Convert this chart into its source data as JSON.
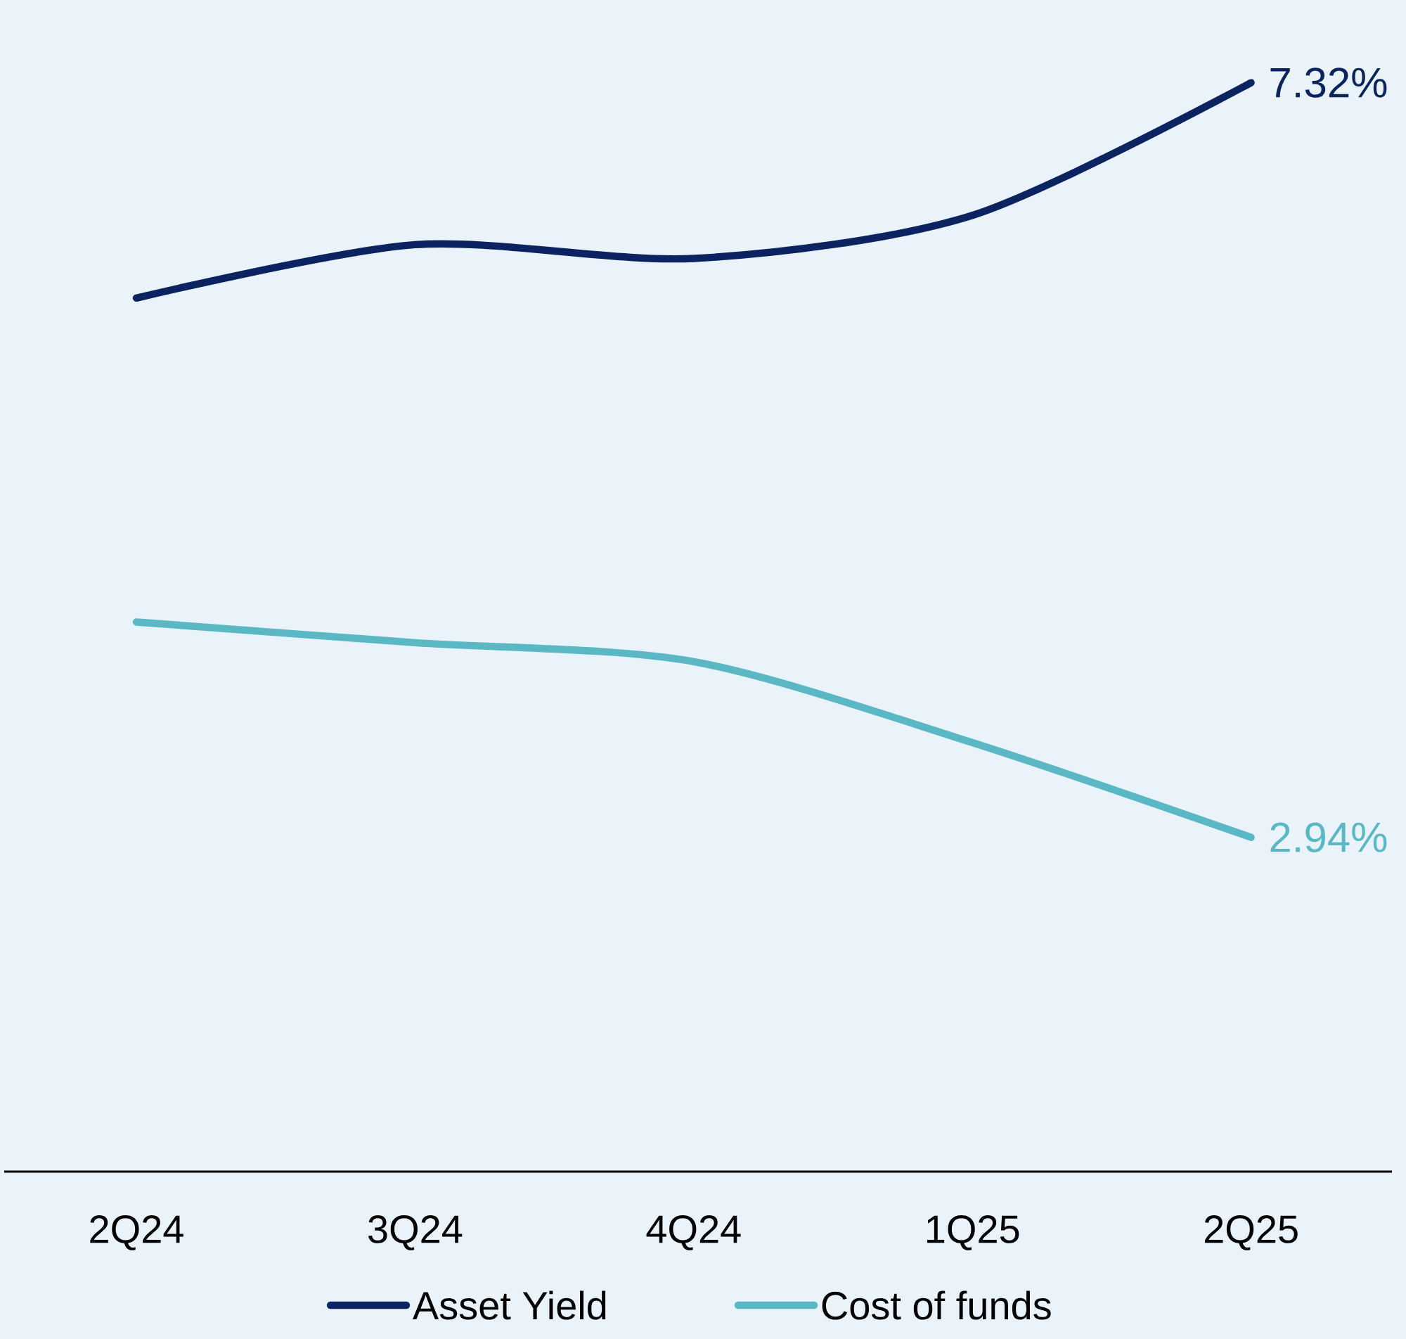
{
  "chart_data": {
    "type": "line",
    "categories": [
      "2Q24",
      "3Q24",
      "4Q24",
      "1Q25",
      "2Q25"
    ],
    "series": [
      {
        "name": "Asset Yield",
        "color": "#0b2360",
        "values": [
          6.07,
          6.38,
          6.3,
          6.55,
          7.32
        ],
        "value_labels": [
          null,
          null,
          null,
          null,
          "7.32%"
        ]
      },
      {
        "name": "Cost of funds",
        "color": "#5ab8c4",
        "values": [
          4.19,
          4.07,
          3.96,
          3.49,
          2.94
        ],
        "value_labels": [
          null,
          null,
          null,
          null,
          "2.94%"
        ]
      }
    ],
    "ylim": [
      1,
      7.8
    ],
    "legend": "bottom",
    "marker": "none",
    "line_style": "solid"
  }
}
